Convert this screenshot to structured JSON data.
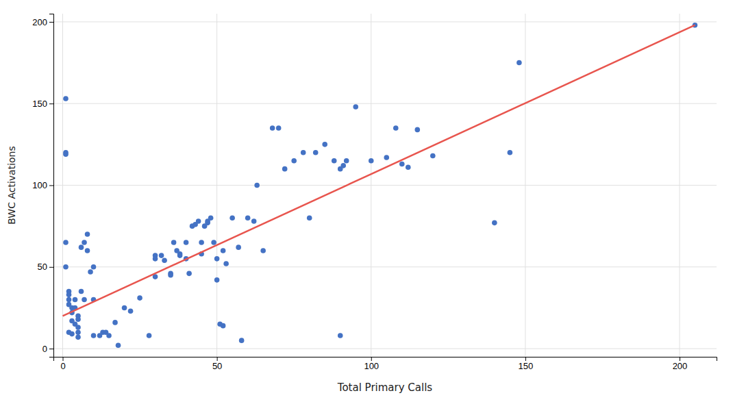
{
  "chart_data": {
    "type": "scatter",
    "xlabel": "Total Primary Calls",
    "ylabel": "BWC Activations",
    "xlim": [
      -3,
      212
    ],
    "ylim": [
      -5,
      205
    ],
    "xticks": [
      0,
      50,
      100,
      150,
      200
    ],
    "yticks": [
      0,
      50,
      100,
      150,
      200
    ],
    "grid": true,
    "series": [
      {
        "type": "scatter",
        "color": "#4472C4",
        "x": [
          1,
          1,
          1,
          1,
          1,
          2,
          2,
          2,
          2,
          2,
          3,
          3,
          3,
          3,
          4,
          4,
          4,
          5,
          5,
          5,
          5,
          5,
          6,
          6,
          7,
          7,
          8,
          8,
          9,
          10,
          10,
          10,
          12,
          13,
          14,
          15,
          17,
          18,
          20,
          22,
          25,
          28,
          30,
          30,
          30,
          32,
          33,
          35,
          35,
          36,
          37,
          38,
          38,
          40,
          40,
          41,
          42,
          43,
          44,
          45,
          45,
          46,
          47,
          47,
          48,
          49,
          50,
          50,
          51,
          52,
          52,
          53,
          55,
          57,
          58,
          60,
          62,
          63,
          65,
          68,
          70,
          72,
          75,
          78,
          80,
          82,
          85,
          88,
          90,
          90,
          91,
          92,
          95,
          100,
          105,
          108,
          110,
          112,
          115,
          120,
          140,
          145,
          148,
          205
        ],
        "values": [
          153,
          120,
          119,
          65,
          50,
          35,
          33,
          30,
          27,
          10,
          25,
          22,
          17,
          9,
          30,
          25,
          15,
          20,
          18,
          13,
          10,
          7,
          62,
          35,
          65,
          30,
          70,
          60,
          47,
          50,
          30,
          8,
          8,
          10,
          10,
          8,
          16,
          2,
          25,
          23,
          31,
          8,
          57,
          55,
          44,
          57,
          54,
          46,
          45,
          65,
          60,
          58,
          57,
          65,
          55,
          46,
          75,
          76,
          78,
          65,
          58,
          75,
          78,
          77,
          80,
          65,
          55,
          42,
          15,
          14,
          60,
          52,
          80,
          62,
          5,
          80,
          78,
          100,
          60,
          135,
          135,
          110,
          115,
          120,
          80,
          120,
          125,
          115,
          8,
          110,
          112,
          115,
          148,
          115,
          117,
          135,
          113,
          111,
          134,
          118,
          77,
          120,
          175,
          198
        ]
      },
      {
        "type": "line",
        "color": "#E8554E",
        "x": [
          0,
          205
        ],
        "values": [
          20,
          198
        ]
      }
    ]
  }
}
